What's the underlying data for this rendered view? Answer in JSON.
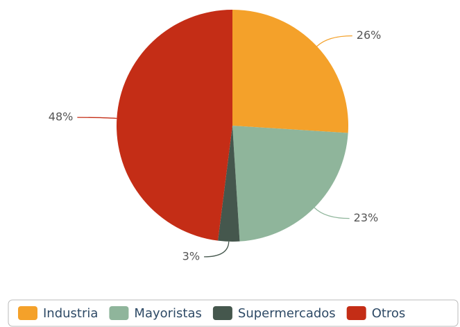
{
  "chart_data": {
    "type": "pie",
    "categories": [
      "Industria",
      "Mayoristas",
      "Supermercados",
      "Otros"
    ],
    "values": [
      26,
      23,
      3,
      48
    ],
    "value_labels": [
      "26%",
      "23%",
      "3%",
      "48%"
    ],
    "colors": [
      "#f4a12a",
      "#8fb59b",
      "#45574d",
      "#c42d16"
    ],
    "legend": "bottom"
  }
}
